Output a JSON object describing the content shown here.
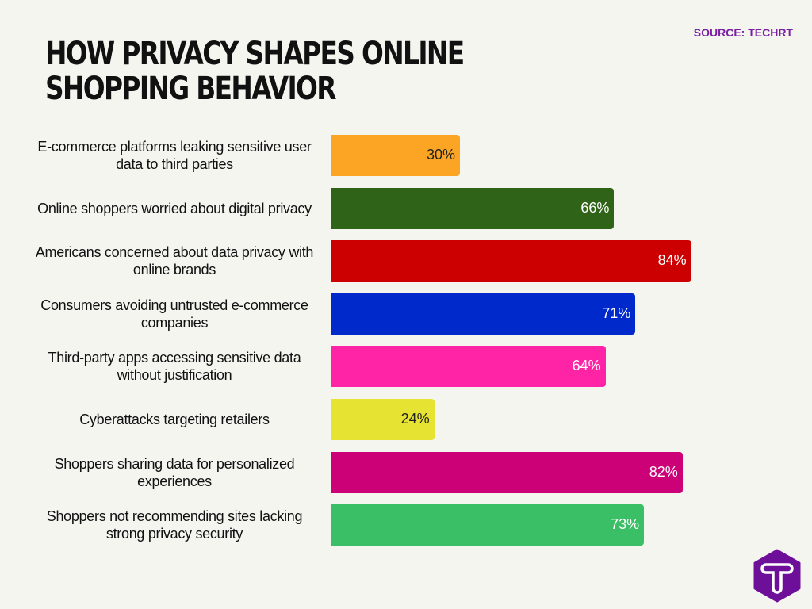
{
  "source": "SOURCE: TECHRT",
  "logo_text": "T",
  "chart_data": {
    "type": "bar",
    "orientation": "horizontal",
    "title": "HOW PRIVACY SHAPES ONLINE SHOPPING BEHAVIOR",
    "xlim": [
      0,
      100
    ],
    "grid": false,
    "categories": [
      "E-commerce platforms leaking sensitive user data to third parties",
      "Online shoppers worried about digital privacy",
      "Americans concerned about data privacy with online brands",
      "Consumers avoiding untrusted e-commerce companies",
      "Third-party apps accessing sensitive data without justification",
      "Cyberattacks targeting retailers",
      "Shoppers sharing data for personalized experiences",
      "Shoppers not recommending sites lacking strong privacy security"
    ],
    "values": [
      30,
      66,
      84,
      71,
      64,
      24,
      82,
      73
    ],
    "value_labels": [
      "30%",
      "66%",
      "84%",
      "71%",
      "64%",
      "24%",
      "82%",
      "73%"
    ],
    "colors": [
      "#fca524",
      "#2f6318",
      "#cc0000",
      "#0029cc",
      "#ff24a6",
      "#e6e332",
      "#cc0077",
      "#3bbf66"
    ],
    "label_colors": [
      "#222222",
      "#ffffff",
      "#ffffff",
      "#ffffff",
      "#ffffff",
      "#222222",
      "#ffffff",
      "#ffffff"
    ]
  }
}
